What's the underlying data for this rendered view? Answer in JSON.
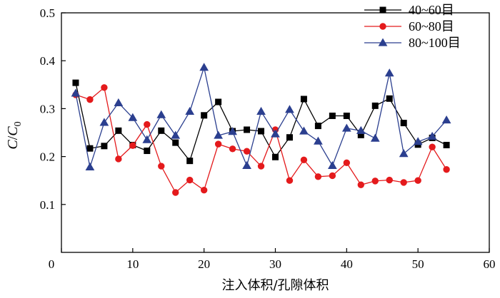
{
  "chart_data": {
    "type": "line",
    "xlabel": "注入体积/孔隙体积",
    "ylabel": {
      "main": "C",
      "sep": "/",
      "base": "C",
      "sub": "0"
    },
    "xlim": [
      0,
      60
    ],
    "ylim": [
      0.0,
      0.5
    ],
    "xticks": [
      0,
      10,
      20,
      30,
      40,
      50,
      60
    ],
    "yticks": [
      0.1,
      0.2,
      0.3,
      0.4,
      0.5
    ],
    "x_tick_labels": [
      "10",
      "20",
      "30",
      "40",
      "50",
      "60"
    ],
    "y_tick_labels": [
      "0.1",
      "0.2",
      "0.3",
      "0.4",
      "0.5"
    ],
    "origin_label": "0",
    "legend_position": "top-right",
    "grid": false,
    "series": [
      {
        "name": "40~60目",
        "color": "#000000",
        "marker": "square",
        "x": [
          2,
          4,
          6,
          8,
          10,
          12,
          14,
          16,
          18,
          20,
          22,
          24,
          26,
          28,
          30,
          32,
          34,
          36,
          38,
          40,
          42,
          44,
          46,
          48,
          50,
          52,
          54
        ],
        "values": [
          0.354,
          0.217,
          0.222,
          0.254,
          0.224,
          0.212,
          0.254,
          0.229,
          0.191,
          0.286,
          0.314,
          0.253,
          0.256,
          0.253,
          0.199,
          0.24,
          0.32,
          0.264,
          0.285,
          0.285,
          0.245,
          0.306,
          0.321,
          0.27,
          0.225,
          0.239,
          0.224
        ]
      },
      {
        "name": "60~80目",
        "color": "#e41a1c",
        "marker": "circle",
        "x": [
          2,
          4,
          6,
          8,
          10,
          12,
          14,
          16,
          18,
          20,
          22,
          24,
          26,
          28,
          30,
          32,
          34,
          36,
          38,
          40,
          42,
          44,
          46,
          48,
          50,
          52,
          54
        ],
        "values": [
          0.329,
          0.319,
          0.344,
          0.195,
          0.223,
          0.267,
          0.18,
          0.125,
          0.151,
          0.13,
          0.226,
          0.216,
          0.211,
          0.18,
          0.256,
          0.15,
          0.193,
          0.158,
          0.16,
          0.187,
          0.141,
          0.149,
          0.151,
          0.146,
          0.15,
          0.22,
          0.173
        ]
      },
      {
        "name": "80~100目",
        "color": "#2b3f8f",
        "marker": "triangle",
        "x": [
          2,
          4,
          6,
          8,
          10,
          12,
          14,
          16,
          18,
          20,
          22,
          24,
          26,
          28,
          30,
          32,
          34,
          36,
          38,
          40,
          42,
          44,
          46,
          48,
          50,
          52,
          54
        ],
        "values": [
          0.332,
          0.178,
          0.271,
          0.312,
          0.281,
          0.235,
          0.287,
          0.244,
          0.294,
          0.386,
          0.244,
          0.252,
          0.181,
          0.294,
          0.247,
          0.298,
          0.253,
          0.232,
          0.181,
          0.259,
          0.254,
          0.238,
          0.374,
          0.206,
          0.231,
          0.242,
          0.276
        ]
      }
    ]
  }
}
